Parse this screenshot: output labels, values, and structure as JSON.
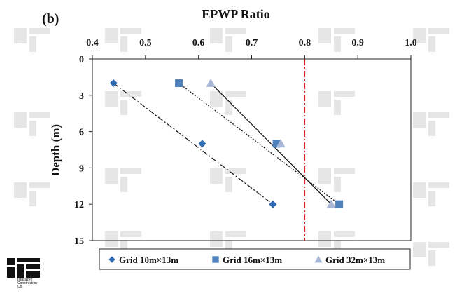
{
  "panel_label": "(b)",
  "logo": {
    "text_lines": [
      "Istasazeh",
      "Construction",
      "Co."
    ]
  },
  "colors": {
    "series_grid10": "#2e6ab1",
    "series_grid16": "#4f81bd",
    "series_grid32": "#a8b6d8",
    "threshold_line": "#e02020",
    "watermark": "#e6e6e6"
  },
  "chart_data": {
    "type": "scatter",
    "title": "EPWP Ratio",
    "xlabel": "EPWP Ratio",
    "ylabel": "Depth (m)",
    "x_axis_position": "top",
    "y_axis_inverted": true,
    "xlim": [
      0.4,
      1.0
    ],
    "ylim": [
      0,
      15
    ],
    "xticks": [
      "0.4",
      "0.5",
      "0.6",
      "0.7",
      "0.8",
      "0.9",
      "1.0"
    ],
    "yticks": [
      "0",
      "3",
      "6",
      "9",
      "12",
      "15"
    ],
    "grid": false,
    "legend_position": "bottom",
    "series": [
      {
        "name": "Grid 10m×13m",
        "marker": "diamond",
        "points": [
          [
            0.44,
            2
          ],
          [
            0.607,
            7
          ],
          [
            0.74,
            12
          ]
        ],
        "trendline": {
          "style": "dash-dot",
          "from": [
            0.44,
            2
          ],
          "to": [
            0.74,
            12
          ]
        }
      },
      {
        "name": "Grid 16m×13m",
        "marker": "square",
        "points": [
          [
            0.563,
            2
          ],
          [
            0.747,
            7
          ],
          [
            0.865,
            12
          ]
        ],
        "trendline": {
          "style": "dotted",
          "from": [
            0.563,
            2
          ],
          "to": [
            0.865,
            12
          ]
        }
      },
      {
        "name": "Grid 32m×13m",
        "marker": "triangle",
        "points": [
          [
            0.623,
            2
          ],
          [
            0.755,
            7
          ],
          [
            0.85,
            12
          ]
        ],
        "trendline": {
          "style": "solid",
          "from": [
            0.623,
            2
          ],
          "to": [
            0.85,
            12
          ]
        }
      }
    ],
    "reference_lines": [
      {
        "axis": "x",
        "value": 0.8,
        "style": "dash-dot",
        "color": "#e02020"
      }
    ]
  }
}
